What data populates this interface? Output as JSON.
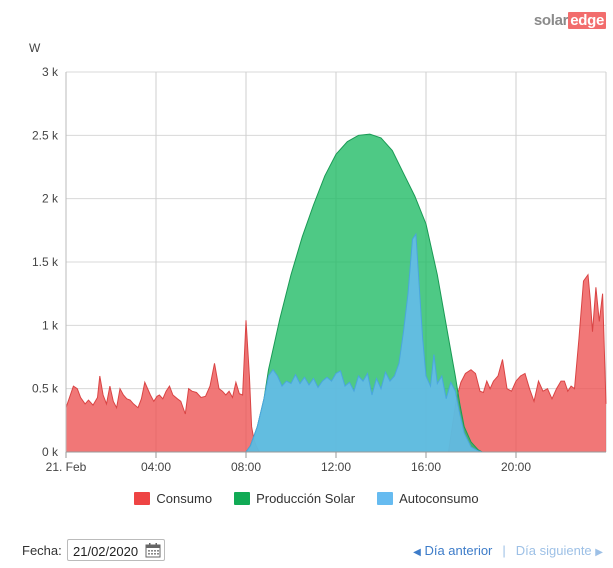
{
  "brand": {
    "part1": "solar",
    "part2": "edge"
  },
  "chart_data": {
    "type": "area",
    "ylabel": "W",
    "ylim": [
      0,
      3000
    ],
    "yticks": [
      0,
      500,
      1000,
      1500,
      2000,
      2500,
      3000
    ],
    "ytick_labels": [
      "0 k",
      "0.5 k",
      "1 k",
      "1.5 k",
      "2 k",
      "2.5 k",
      "3 k"
    ],
    "xlim": [
      0,
      24
    ],
    "xticks": [
      0,
      4,
      8,
      12,
      16,
      20
    ],
    "xtick_labels": [
      "21. Feb",
      "04:00",
      "08:00",
      "12:00",
      "16:00",
      "20:00"
    ],
    "grid": true,
    "legend_position": "bottom",
    "series": [
      {
        "name": "Consumo",
        "color": "#ee5555",
        "x": [
          0,
          0.33,
          0.5,
          0.65,
          0.85,
          1,
          1.2,
          1.4,
          1.5,
          1.65,
          1.8,
          1.95,
          2.1,
          2.25,
          2.4,
          2.55,
          2.7,
          2.85,
          3,
          3.2,
          3.35,
          3.5,
          3.75,
          3.9,
          4.05,
          4.15,
          4.3,
          4.45,
          4.6,
          4.75,
          4.95,
          5.1,
          5.3,
          5.45,
          5.6,
          5.8,
          6,
          6.2,
          6.4,
          6.6,
          6.8,
          6.95,
          7.1,
          7.25,
          7.4,
          7.55,
          7.7,
          7.85,
          8,
          8.15,
          8.25,
          8.35,
          8.45,
          8.6,
          8.75,
          9,
          9.5,
          10,
          10.5,
          11,
          11.5,
          12,
          12.5,
          13,
          13.5,
          14,
          14.5,
          15,
          15.5,
          16,
          16.5,
          17,
          17.35,
          17.55,
          17.75,
          18,
          18.2,
          18.4,
          18.55,
          18.7,
          18.85,
          19,
          19.2,
          19.4,
          19.6,
          19.8,
          20,
          20.2,
          20.4,
          20.6,
          20.8,
          21,
          21.2,
          21.4,
          21.6,
          21.8,
          22,
          22.15,
          22.3,
          22.45,
          22.6,
          22.8,
          23,
          23.2,
          23.3,
          23.4,
          23.55,
          23.7,
          23.85,
          24
        ],
        "values": [
          350,
          520,
          500,
          430,
          380,
          410,
          370,
          430,
          600,
          450,
          380,
          520,
          400,
          350,
          500,
          450,
          420,
          410,
          380,
          350,
          420,
          550,
          450,
          400,
          440,
          450,
          420,
          480,
          520,
          450,
          420,
          400,
          300,
          500,
          480,
          470,
          430,
          440,
          520,
          700,
          500,
          480,
          450,
          480,
          430,
          550,
          460,
          450,
          1040,
          600,
          200,
          100,
          50,
          0,
          0,
          0,
          0,
          0,
          0,
          0,
          0,
          0,
          0,
          0,
          0,
          0,
          0,
          0,
          0,
          0,
          0,
          0,
          420,
          550,
          620,
          650,
          620,
          480,
          470,
          560,
          500,
          560,
          600,
          730,
          500,
          480,
          560,
          600,
          620,
          500,
          400,
          560,
          480,
          500,
          420,
          500,
          560,
          560,
          480,
          520,
          500,
          900,
          1350,
          1400,
          1200,
          950,
          1300,
          1030,
          1250,
          380
        ]
      },
      {
        "name": "Producción Solar",
        "color": "#22bb66",
        "x": [
          0,
          8,
          8.2,
          8.5,
          8.8,
          9,
          9.5,
          10,
          10.5,
          11,
          11.5,
          12,
          12.5,
          13,
          13.5,
          14,
          14.5,
          15,
          15.5,
          16,
          16.5,
          17,
          17.3,
          17.5,
          17.7,
          18,
          18.3,
          18.5,
          24
        ],
        "values": [
          0,
          0,
          50,
          200,
          420,
          650,
          1050,
          1400,
          1700,
          1950,
          2180,
          2350,
          2450,
          2500,
          2510,
          2480,
          2380,
          2200,
          2020,
          1800,
          1400,
          900,
          600,
          380,
          200,
          80,
          20,
          0,
          0
        ]
      },
      {
        "name": "Autoconsumo",
        "color": "#66bbf0",
        "x": [
          0,
          8,
          8.2,
          8.5,
          8.8,
          9,
          9.2,
          9.4,
          9.6,
          9.8,
          10,
          10.2,
          10.4,
          10.6,
          10.8,
          11,
          11.2,
          11.4,
          11.6,
          11.8,
          12,
          12.2,
          12.4,
          12.6,
          12.8,
          13,
          13.2,
          13.4,
          13.6,
          13.8,
          14,
          14.2,
          14.4,
          14.6,
          14.8,
          15,
          15.2,
          15.4,
          15.55,
          15.7,
          15.85,
          16,
          16.2,
          16.35,
          16.5,
          16.7,
          16.9,
          17.1,
          17.3,
          17.5,
          17.7,
          18,
          18.3,
          18.5,
          24
        ],
        "values": [
          0,
          0,
          50,
          200,
          420,
          600,
          650,
          600,
          520,
          560,
          540,
          610,
          540,
          590,
          530,
          580,
          510,
          560,
          590,
          560,
          620,
          640,
          520,
          550,
          480,
          600,
          560,
          620,
          450,
          580,
          500,
          630,
          560,
          600,
          700,
          950,
          1250,
          1680,
          1720,
          1300,
          900,
          600,
          520,
          770,
          540,
          600,
          420,
          550,
          480,
          300,
          150,
          40,
          10,
          0,
          0
        ]
      }
    ]
  },
  "footer": {
    "date_label": "Fecha:",
    "date_value": "21/02/2020",
    "prev_label": "Día anterior",
    "next_label": "Día siguiente",
    "separator": "|"
  }
}
